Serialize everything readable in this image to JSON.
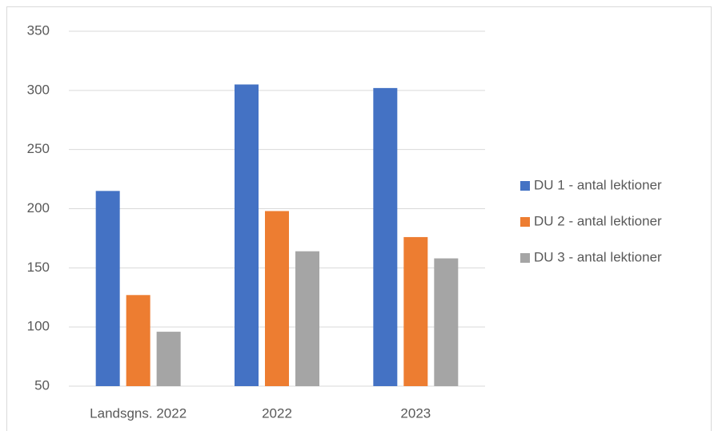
{
  "chart_data": {
    "type": "bar",
    "categories": [
      "Landsgns. 2022",
      "2022",
      "2023"
    ],
    "series": [
      {
        "name": "DU 1 - antal lektioner",
        "color": "#4472c4",
        "values": [
          215,
          305,
          302
        ]
      },
      {
        "name": "DU 2 - antal lektioner",
        "color": "#ed7d31",
        "values": [
          127,
          198,
          176
        ]
      },
      {
        "name": "DU 3 - antal lektioner",
        "color": "#a5a5a5",
        "values": [
          96,
          164,
          158
        ]
      }
    ],
    "ylim": [
      50,
      350
    ],
    "yticks": [
      50,
      100,
      150,
      200,
      250,
      300,
      350
    ],
    "grid": true,
    "legend": "right"
  }
}
